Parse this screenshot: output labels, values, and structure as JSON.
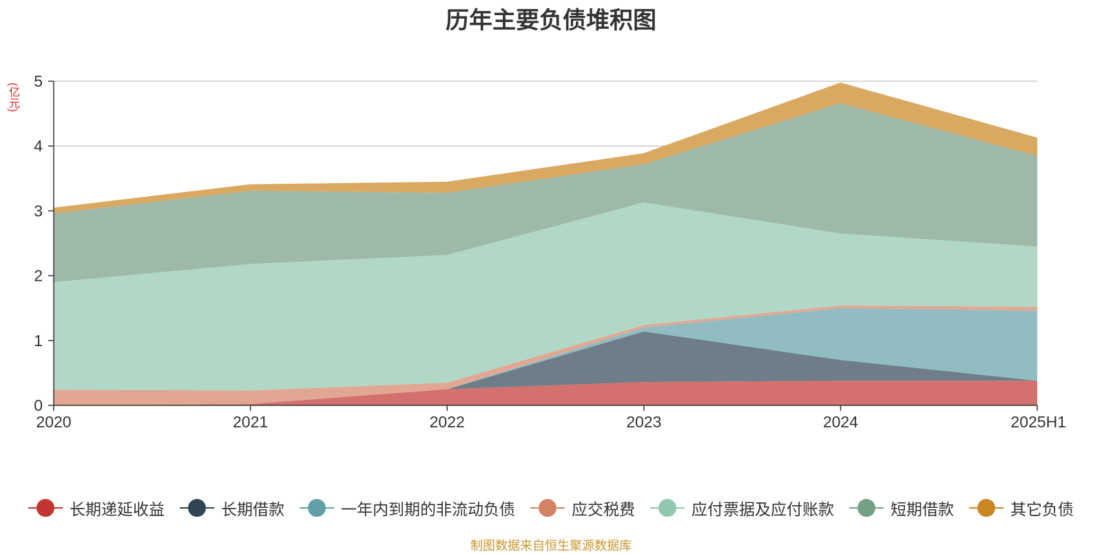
{
  "chart_data": {
    "type": "area",
    "stacked": true,
    "title": "历年主要负债堆积图",
    "unit_label": "(亿元)",
    "source_note": "制图数据来自恒生聚源数据库",
    "categories": [
      "2020",
      "2021",
      "2022",
      "2023",
      "2024",
      "2025H1"
    ],
    "ylim": [
      0,
      5
    ],
    "yticks": [
      "0",
      "1",
      "2",
      "3",
      "4",
      "5"
    ],
    "grid": true,
    "legend_position": "bottom",
    "series": [
      {
        "name": "长期递延收益",
        "color": "#c23531",
        "fill": "#d4706e",
        "values": [
          0.0,
          0.02,
          0.25,
          0.36,
          0.38,
          0.38
        ]
      },
      {
        "name": "长期借款",
        "color": "#2f4554",
        "fill": "#6e7d88",
        "values": [
          0.0,
          0.0,
          0.0,
          0.78,
          0.32,
          0.0
        ]
      },
      {
        "name": "一年内到期的非流动负债",
        "color": "#61a0a8",
        "fill": "#90bcc2",
        "values": [
          0.0,
          0.0,
          0.0,
          0.06,
          0.8,
          1.08
        ]
      },
      {
        "name": "应交税费",
        "color": "#d48265",
        "fill": "#e1a792",
        "values": [
          0.24,
          0.21,
          0.1,
          0.04,
          0.04,
          0.06
        ]
      },
      {
        "name": "应付票据及应付账款",
        "color": "#91c7ae",
        "fill": "#b1d8c6",
        "values": [
          1.66,
          1.95,
          1.97,
          1.89,
          1.11,
          0.93
        ]
      },
      {
        "name": "短期借款",
        "color": "#749f83",
        "fill": "#9eb9a7",
        "values": [
          1.06,
          1.13,
          0.96,
          0.59,
          2.01,
          1.4
        ]
      },
      {
        "name": "其它负债",
        "color": "#ca8622",
        "fill": "#d9a961",
        "values": [
          0.09,
          0.1,
          0.17,
          0.17,
          0.32,
          0.28
        ]
      }
    ]
  }
}
